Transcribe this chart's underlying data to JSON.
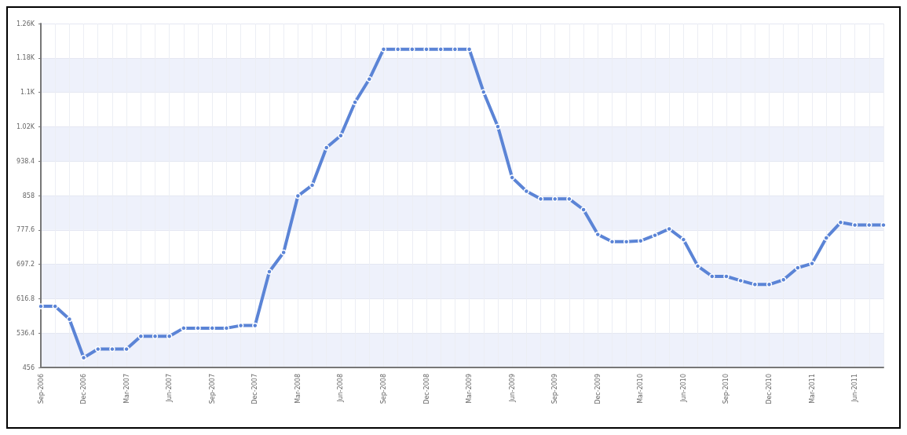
{
  "chart_data": {
    "type": "line",
    "categories": [
      "Sep-2006",
      null,
      null,
      "Dec-2006",
      null,
      null,
      "Mar-2007",
      null,
      null,
      "Jun-2007",
      null,
      null,
      "Sep-2007",
      null,
      null,
      "Dec-2007",
      null,
      null,
      "Mar-2008",
      null,
      null,
      "Jun-2008",
      null,
      null,
      "Sep-2008",
      null,
      null,
      "Dec-2008",
      null,
      null,
      "Mar-2009",
      null,
      null,
      "Jun-2009",
      null,
      null,
      "Sep-2009",
      null,
      null,
      "Dec-2009",
      null,
      null,
      "Mar-2010",
      null,
      null,
      "Jun-2010",
      null,
      null,
      "Sep-2010",
      null,
      null,
      "Dec-2010",
      null,
      null,
      "Mar-2011",
      null,
      null,
      "Jun-2011",
      null,
      null
    ],
    "series": [
      {
        "color": "#5b84d6",
        "values": [
          599,
          599,
          569,
          479,
          499,
          499,
          499,
          529,
          529,
          529,
          548,
          548,
          548,
          548,
          554,
          554,
          680,
          725,
          857,
          882,
          970,
          998,
          1076,
          1130,
          1200,
          1200,
          1200,
          1200,
          1200,
          1200,
          1200,
          1100,
          1019,
          900,
          868,
          850,
          850,
          850,
          825,
          767,
          750,
          750,
          752,
          765,
          780,
          755,
          693,
          669,
          669,
          659,
          650,
          650,
          661,
          689,
          699,
          759,
          795,
          789,
          789,
          789
        ]
      }
    ],
    "ylim": [
      456,
      1260
    ],
    "yticks": [
      456,
      536.4,
      616.8,
      697.2,
      777.6,
      858,
      938.4,
      {
        "value": 1018.8,
        "label": "1.02K"
      },
      {
        "value": 1099.2,
        "label": "1.1K"
      },
      {
        "value": 1179.6,
        "label": "1.18K"
      },
      {
        "value": 1260,
        "label": "1.26K"
      }
    ],
    "grid": true,
    "marker": "circle",
    "line_style": "solid"
  }
}
